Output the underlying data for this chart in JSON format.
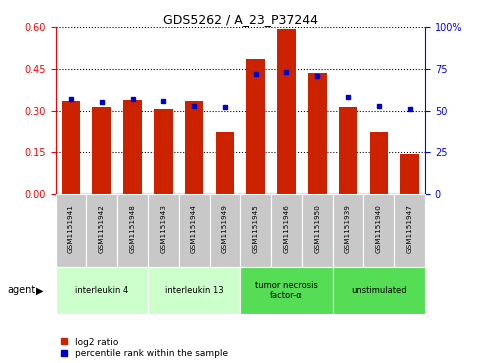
{
  "title": "GDS5262 / A_23_P37244",
  "samples": [
    "GSM1151941",
    "GSM1151942",
    "GSM1151948",
    "GSM1151943",
    "GSM1151944",
    "GSM1151949",
    "GSM1151945",
    "GSM1151946",
    "GSM1151950",
    "GSM1151939",
    "GSM1151940",
    "GSM1151947"
  ],
  "log2_ratio": [
    0.335,
    0.315,
    0.34,
    0.305,
    0.335,
    0.225,
    0.485,
    0.595,
    0.435,
    0.315,
    0.225,
    0.145
  ],
  "percentile_rank": [
    57,
    55,
    57,
    56,
    53,
    52,
    72,
    73,
    71,
    58,
    53,
    51
  ],
  "agents": [
    {
      "label": "interleukin 4",
      "span": [
        0,
        3
      ],
      "color": "#ccffcc"
    },
    {
      "label": "interleukin 13",
      "span": [
        3,
        6
      ],
      "color": "#ccffcc"
    },
    {
      "label": "tumor necrosis\nfactor-α",
      "span": [
        6,
        9
      ],
      "color": "#55dd55"
    },
    {
      "label": "unstimulated",
      "span": [
        9,
        12
      ],
      "color": "#55dd55"
    }
  ],
  "ylim_left": [
    0,
    0.6
  ],
  "ylim_right": [
    0,
    100
  ],
  "yticks_left": [
    0,
    0.15,
    0.3,
    0.45,
    0.6
  ],
  "yticks_right": [
    0,
    25,
    50,
    75,
    100
  ],
  "bar_color": "#cc2200",
  "dot_color": "#0000cc",
  "agent_label": "agent",
  "legend_log2": "log2 ratio",
  "legend_pct": "percentile rank within the sample",
  "sample_box_color": "#c8c8c8",
  "grid_color": "#000000",
  "fig_width": 4.83,
  "fig_height": 3.63,
  "dpi": 100
}
